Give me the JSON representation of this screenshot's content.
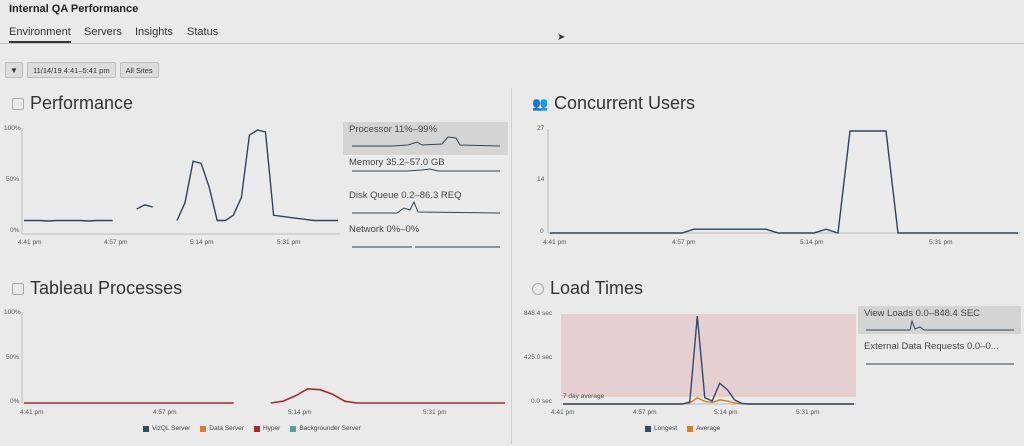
{
  "app": {
    "title": "Internal QA Performance"
  },
  "tabs": [
    {
      "label": "Environment",
      "active": true
    },
    {
      "label": "Servers"
    },
    {
      "label": "Insights"
    },
    {
      "label": "Status"
    }
  ],
  "filters": {
    "funnel_icon": "▼",
    "date_range": "11/14/19 4:41–5:41 pm",
    "sites": "All Sites"
  },
  "performance": {
    "title": "Performance",
    "yticks": [
      "100%",
      "50%",
      "0%"
    ],
    "xticks": [
      "4:41 pm",
      "4:57 pm",
      "5:14 pm",
      "5:31 pm"
    ],
    "series_color": "#2f4358",
    "values": [
      13,
      13,
      13,
      12.5,
      13,
      13,
      13,
      13,
      12.5,
      13,
      13,
      13,
      null,
      null,
      24,
      28,
      26,
      null,
      null,
      13,
      30,
      70,
      68,
      45,
      13,
      13,
      18,
      35,
      95,
      100,
      98,
      18,
      17,
      16,
      15,
      14,
      13,
      13,
      13,
      13
    ],
    "sparks": [
      {
        "label": "Processor 11%–99%",
        "highlight": true
      },
      {
        "label": "Memory 35.2–57.0 GB"
      },
      {
        "label": "Disk Queue 0.2–86.3 REQ"
      },
      {
        "label": "Network 0%–0%"
      }
    ]
  },
  "concurrent": {
    "title": "Concurrent Users",
    "yticks": [
      "27",
      "14",
      "0"
    ],
    "xticks": [
      "4:41 pm",
      "4:57 pm",
      "5:14 pm",
      "5:31 pm"
    ],
    "values": [
      0,
      0,
      0,
      0,
      0,
      0,
      0,
      0,
      0,
      0,
      0,
      0,
      1,
      1,
      1,
      1,
      1,
      1,
      1,
      0,
      0,
      0,
      0,
      1,
      0,
      27,
      27,
      27,
      27,
      0,
      0,
      0,
      0,
      0,
      0,
      0,
      0,
      0,
      0,
      0
    ]
  },
  "processes": {
    "title": "Tableau Processes",
    "yticks": [
      "100%",
      "50%",
      "0%"
    ],
    "xticks": [
      "4:41 pm",
      "4:57 pm",
      "5:14 pm",
      "5:31 pm"
    ],
    "legend": [
      {
        "name": "VizQL Server",
        "color": "#2f4b6e"
      },
      {
        "name": "Data Server",
        "color": "#e07b22"
      },
      {
        "name": "Hyper",
        "color": "#a8282e"
      },
      {
        "name": "Backgrounder Server",
        "color": "#4aa7a0"
      }
    ],
    "values": [
      0,
      0,
      0,
      0,
      0,
      0,
      0,
      0,
      0,
      0,
      0,
      0,
      0,
      0,
      0,
      0,
      0,
      0,
      null,
      null,
      0,
      2,
      8,
      16,
      15,
      10,
      2,
      0,
      0,
      0,
      0,
      0,
      0,
      0,
      0,
      0,
      0,
      0,
      0,
      0
    ]
  },
  "load_times": {
    "title": "Load Times",
    "yticks": [
      "848.4 sec",
      "425.0 sec",
      "0.0 sec"
    ],
    "xticks": [
      "4:41 pm",
      "4:57 pm",
      "5:14 pm",
      "5:31 pm"
    ],
    "band_label": "7 day average",
    "legend": [
      {
        "name": "Longest",
        "color": "#2f4b6e"
      },
      {
        "name": "Average",
        "color": "#e07b22"
      }
    ],
    "longest": [
      0,
      0,
      0,
      0,
      0,
      0,
      0,
      0,
      0,
      0,
      0,
      0,
      0,
      0,
      0,
      0,
      0,
      20,
      848,
      60,
      30,
      200,
      140,
      40,
      5,
      0,
      0,
      0,
      0,
      0,
      0,
      0,
      0,
      0,
      0,
      0,
      0,
      0,
      0,
      0
    ],
    "average": [
      0,
      0,
      0,
      0,
      0,
      0,
      0,
      0,
      0,
      0,
      0,
      0,
      0,
      0,
      0,
      0,
      0,
      10,
      60,
      25,
      15,
      40,
      30,
      10,
      2,
      0,
      0,
      0,
      0,
      0,
      0,
      0,
      0,
      0,
      0,
      0,
      0,
      0,
      0,
      0
    ],
    "sparks": [
      {
        "label": "View Loads 0.0–848.4 SEC",
        "highlight": true
      },
      {
        "label": "External Data Requests 0.0–0..."
      }
    ]
  }
}
